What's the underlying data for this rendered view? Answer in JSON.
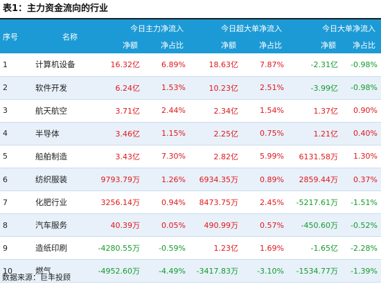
{
  "title": "表1：主力资金流向的行业",
  "header": {
    "idx": "序号",
    "name": "名称",
    "groups": [
      "今日主力净流入",
      "今日超大单净流入",
      "今日大单净流入"
    ],
    "sub": [
      "净额",
      "净占比",
      "净额",
      "净占比",
      "净额",
      "净占比"
    ]
  },
  "rows": [
    {
      "idx": "1",
      "name": "计算机设备",
      "v": [
        "16.32亿",
        "6.89%",
        "18.63亿",
        "7.87%",
        "-2.31亿",
        "-0.98%"
      ]
    },
    {
      "idx": "2",
      "name": "软件开发",
      "v": [
        "6.24亿",
        "1.53%",
        "10.23亿",
        "2.51%",
        "-3.99亿",
        "-0.98%"
      ]
    },
    {
      "idx": "3",
      "name": "航天航空",
      "v": [
        "3.71亿",
        "2.44%",
        "2.34亿",
        "1.54%",
        "1.37亿",
        "0.90%"
      ]
    },
    {
      "idx": "4",
      "name": "半导体",
      "v": [
        "3.46亿",
        "1.15%",
        "2.25亿",
        "0.75%",
        "1.21亿",
        "0.40%"
      ]
    },
    {
      "idx": "5",
      "name": "船舶制造",
      "v": [
        "3.43亿",
        "7.30%",
        "2.82亿",
        "5.99%",
        "6131.58万",
        "1.30%"
      ]
    },
    {
      "idx": "6",
      "name": "纺织服装",
      "v": [
        "9793.79万",
        "1.26%",
        "6934.35万",
        "0.89%",
        "2859.44万",
        "0.37%"
      ]
    },
    {
      "idx": "7",
      "name": "化肥行业",
      "v": [
        "3256.14万",
        "0.94%",
        "8473.75万",
        "2.45%",
        "-5217.61万",
        "-1.51%"
      ]
    },
    {
      "idx": "8",
      "name": "汽车服务",
      "v": [
        "40.39万",
        "0.05%",
        "490.99万",
        "0.57%",
        "-450.60万",
        "-0.52%"
      ]
    },
    {
      "idx": "9",
      "name": "造纸印刷",
      "v": [
        "-4280.55万",
        "-0.59%",
        "1.23亿",
        "1.69%",
        "-1.65亿",
        "-2.28%"
      ]
    },
    {
      "idx": "10",
      "name": "燃气",
      "v": [
        "-4952.60万",
        "-4.49%",
        "-3417.83万",
        "-3.10%",
        "-1534.77万",
        "-1.39%"
      ]
    }
  ],
  "source": "数据来源：巨丰投顾",
  "colors": {
    "header_bg": "#1c9ad6",
    "positive": "#e0161a",
    "negative": "#119a2b",
    "stripe": "#e8f1fa"
  }
}
